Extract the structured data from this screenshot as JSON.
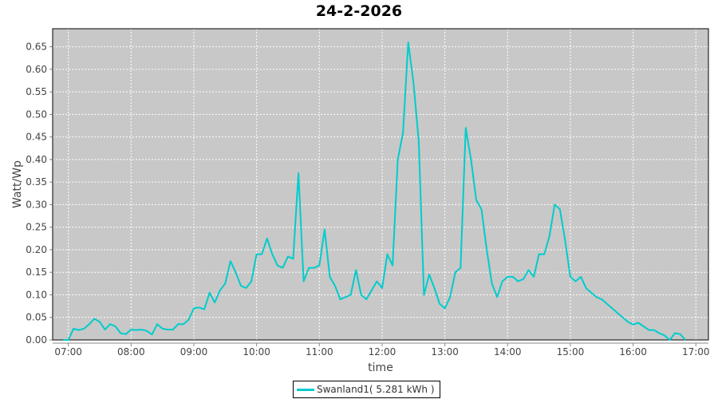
{
  "chart_data": {
    "type": "line",
    "title": "24-2-2026",
    "xlabel": "time",
    "ylabel": "Watt/Wp",
    "ylim": [
      0,
      0.69
    ],
    "xlim": [
      "06:45",
      "17:12"
    ],
    "grid": true,
    "legend_placement": "bottom",
    "x_ticks": [
      "07:00",
      "08:00",
      "09:00",
      "10:00",
      "11:00",
      "12:00",
      "13:00",
      "14:00",
      "15:00",
      "16:00",
      "17:00"
    ],
    "y_ticks": [
      "0.00",
      "0.05",
      "0.10",
      "0.15",
      "0.20",
      "0.25",
      "0.30",
      "0.35",
      "0.40",
      "0.45",
      "0.50",
      "0.55",
      "0.60",
      "0.65"
    ],
    "colors": {
      "series": "#00CCCC",
      "plot_background": "#C8C8C8",
      "grid": "#FFFFFF"
    },
    "series": [
      {
        "name": "Swanland1( 5.281 kWh )",
        "x": [
          "06:55",
          "07:00",
          "07:05",
          "07:10",
          "07:15",
          "07:20",
          "07:25",
          "07:30",
          "07:35",
          "07:40",
          "07:45",
          "07:50",
          "07:55",
          "08:00",
          "08:05",
          "08:10",
          "08:15",
          "08:20",
          "08:25",
          "08:30",
          "08:35",
          "08:40",
          "08:45",
          "08:50",
          "08:55",
          "09:00",
          "09:05",
          "09:10",
          "09:15",
          "09:20",
          "09:25",
          "09:30",
          "09:35",
          "09:40",
          "09:45",
          "09:50",
          "09:55",
          "10:00",
          "10:05",
          "10:10",
          "10:15",
          "10:20",
          "10:25",
          "10:30",
          "10:35",
          "10:40",
          "10:45",
          "10:50",
          "10:55",
          "11:00",
          "11:05",
          "11:10",
          "11:15",
          "11:20",
          "11:25",
          "11:30",
          "11:35",
          "11:40",
          "11:45",
          "11:50",
          "11:55",
          "12:00",
          "12:05",
          "12:10",
          "12:15",
          "12:20",
          "12:25",
          "12:30",
          "12:35",
          "12:40",
          "12:45",
          "12:50",
          "12:55",
          "13:00",
          "13:05",
          "13:10",
          "13:15",
          "13:20",
          "13:25",
          "13:30",
          "13:35",
          "13:40",
          "13:45",
          "13:50",
          "13:55",
          "14:00",
          "14:05",
          "14:10",
          "14:15",
          "14:20",
          "14:25",
          "14:30",
          "14:35",
          "14:40",
          "14:45",
          "14:50",
          "14:55",
          "15:00",
          "15:05",
          "15:10",
          "15:15",
          "15:20",
          "15:25",
          "15:30",
          "15:35",
          "15:40",
          "15:45",
          "15:50",
          "15:55",
          "16:00",
          "16:05",
          "16:10",
          "16:15",
          "16:20",
          "16:25",
          "16:30",
          "16:35",
          "16:40",
          "16:45",
          "16:50"
        ],
        "values": [
          0.0,
          0.0,
          0.025,
          0.022,
          0.025,
          0.035,
          0.047,
          0.04,
          0.023,
          0.035,
          0.03,
          0.015,
          0.013,
          0.023,
          0.022,
          0.023,
          0.02,
          0.012,
          0.035,
          0.025,
          0.023,
          0.023,
          0.035,
          0.035,
          0.045,
          0.07,
          0.072,
          0.068,
          0.105,
          0.083,
          0.11,
          0.125,
          0.175,
          0.15,
          0.12,
          0.115,
          0.13,
          0.19,
          0.19,
          0.225,
          0.19,
          0.165,
          0.16,
          0.185,
          0.18,
          0.37,
          0.13,
          0.16,
          0.16,
          0.165,
          0.245,
          0.14,
          0.12,
          0.09,
          0.095,
          0.1,
          0.155,
          0.1,
          0.09,
          0.11,
          0.13,
          0.115,
          0.19,
          0.165,
          0.4,
          0.46,
          0.66,
          0.57,
          0.44,
          0.1,
          0.145,
          0.115,
          0.08,
          0.07,
          0.095,
          0.15,
          0.16,
          0.47,
          0.4,
          0.31,
          0.29,
          0.2,
          0.125,
          0.095,
          0.13,
          0.14,
          0.14,
          0.13,
          0.135,
          0.155,
          0.14,
          0.19,
          0.19,
          0.23,
          0.3,
          0.29,
          0.22,
          0.14,
          0.13,
          0.14,
          0.115,
          0.105,
          0.095,
          0.09,
          0.08,
          0.07,
          0.06,
          0.05,
          0.04,
          0.034,
          0.038,
          0.03,
          0.022,
          0.022,
          0.015,
          0.01,
          0.0,
          0.015,
          0.013,
          0.0
        ]
      }
    ]
  }
}
